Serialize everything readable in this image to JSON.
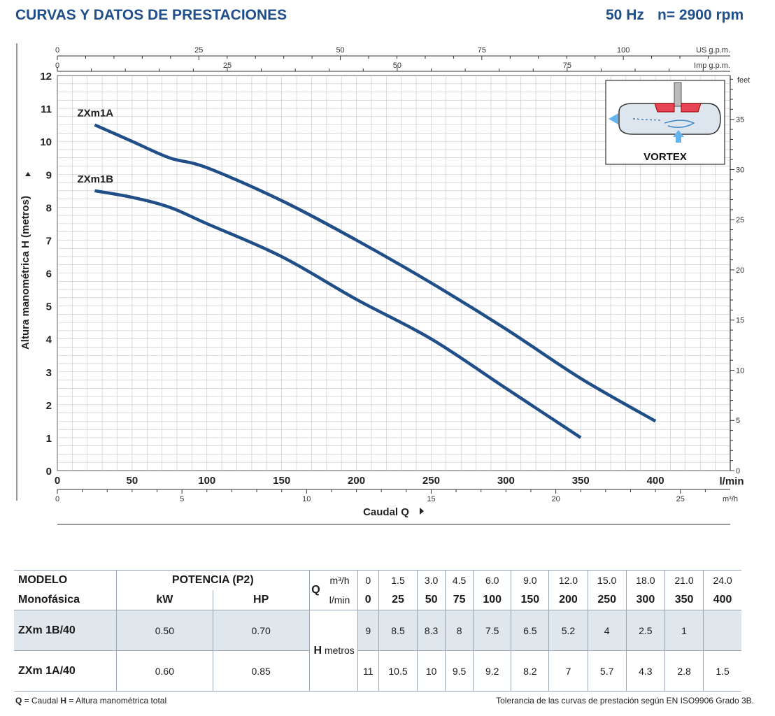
{
  "header": {
    "title": "CURVAS Y DATOS DE PRESTACIONES",
    "freq": "50 Hz",
    "rpm": "n= 2900 rpm"
  },
  "chart_data": {
    "type": "line",
    "ylabel": "Altura manométrica H (metros)",
    "xlabel": "Caudal  Q",
    "x_unit": "l/min",
    "top_axis_1_unit": "US g.p.m.",
    "top_axis_2_unit": "Imp g.p.m.",
    "bottom_axis_2_unit": "m³/h",
    "right_axis_unit": "feet",
    "xlim": [
      0,
      450
    ],
    "ylim": [
      0,
      12
    ],
    "x_ticks": [
      "0",
      "50",
      "100",
      "150",
      "200",
      "250",
      "300",
      "350",
      "400"
    ],
    "y_ticks": [
      "0",
      "1",
      "2",
      "3",
      "4",
      "5",
      "6",
      "7",
      "8",
      "9",
      "10",
      "11",
      "12"
    ],
    "us_gpm_ticks": [
      "0",
      "25",
      "50",
      "75",
      "100"
    ],
    "imp_gpm_ticks": [
      "0",
      "25",
      "50",
      "75"
    ],
    "m3h_ticks": [
      "0",
      "5",
      "10",
      "15",
      "20",
      "25"
    ],
    "feet_ticks": [
      "0",
      "5",
      "10",
      "15",
      "20",
      "25",
      "30",
      "35"
    ],
    "series": [
      {
        "name": "ZXm1A",
        "x": [
          25,
          50,
          75,
          100,
          150,
          200,
          250,
          300,
          350,
          400
        ],
        "y": [
          10.5,
          10,
          9.5,
          9.2,
          8.2,
          7,
          5.7,
          4.3,
          2.8,
          1.5
        ]
      },
      {
        "name": "ZXm1B",
        "x": [
          25,
          50,
          75,
          100,
          150,
          200,
          250,
          300,
          350
        ],
        "y": [
          8.5,
          8.3,
          8,
          7.5,
          6.5,
          5.2,
          4,
          2.5,
          1
        ]
      }
    ],
    "inset_label": "VORTEX"
  },
  "table": {
    "modelo": "MODELO",
    "monofasica": "Monofásica",
    "potencia": "POTENCIA (P2)",
    "kw": "kW",
    "hp": "HP",
    "q": "Q",
    "m3h": "m³/h",
    "lmin": "l/min",
    "h": "H",
    "metros": "metros",
    "q_m3h": [
      "0",
      "1.5",
      "3.0",
      "4.5",
      "6.0",
      "9.0",
      "12.0",
      "15.0",
      "18.0",
      "21.0",
      "24.0"
    ],
    "q_lmin": [
      "0",
      "25",
      "50",
      "75",
      "100",
      "150",
      "200",
      "250",
      "300",
      "350",
      "400"
    ],
    "rows": [
      {
        "model": "ZXm 1B/40",
        "kw": "0.50",
        "hp": "0.70",
        "h": [
          "9",
          "8.5",
          "8.3",
          "8",
          "7.5",
          "6.5",
          "5.2",
          "4",
          "2.5",
          "1",
          ""
        ]
      },
      {
        "model": "ZXm 1A/40",
        "kw": "0.60",
        "hp": "0.85",
        "h": [
          "11",
          "10.5",
          "10",
          "9.5",
          "9.2",
          "8.2",
          "7",
          "5.7",
          "4.3",
          "2.8",
          "1.5"
        ]
      }
    ]
  },
  "footer": {
    "left_q": "Q",
    "left_q_text": " = Caudal   ",
    "left_h": "H",
    "left_h_text": " = Altura manométrica total",
    "right": "Tolerancia de las curvas de prestación según EN ISO9906 Grado 3B."
  }
}
